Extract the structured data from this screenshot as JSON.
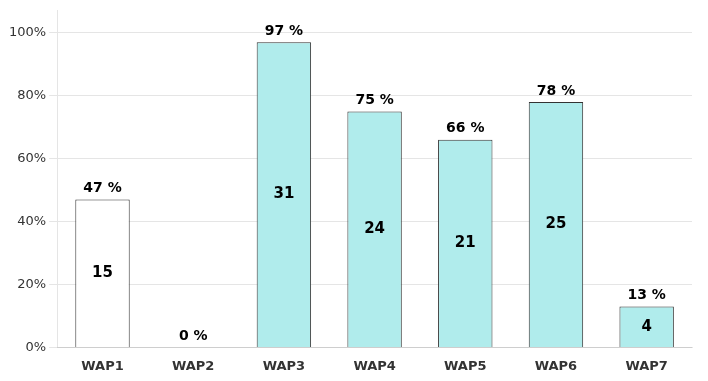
{
  "chart_data": {
    "type": "bar",
    "categories": [
      "WAP1",
      "WAP2",
      "WAP3",
      "WAP4",
      "WAP5",
      "WAP6",
      "WAP7"
    ],
    "values": [
      47,
      0,
      97,
      75,
      66,
      78,
      13
    ],
    "value_labels": [
      "47 %",
      "0 %",
      "97 %",
      "75 %",
      "66 %",
      "78 %",
      "13 %"
    ],
    "counts": [
      15,
      null,
      31,
      24,
      21,
      25,
      4
    ],
    "colors": [
      "#ffffff",
      "#ffffff",
      "#b0ecec",
      "#b0ecec",
      "#b0ecec",
      "#b0ecec",
      "#b0ecec"
    ],
    "ylim": [
      0,
      107
    ],
    "yticks": [
      {
        "value": 0,
        "label": "0%"
      },
      {
        "value": 20,
        "label": "20%"
      },
      {
        "value": 40,
        "label": "40%"
      },
      {
        "value": 60,
        "label": "60%"
      },
      {
        "value": 80,
        "label": "80%"
      },
      {
        "value": 100,
        "label": "100%"
      }
    ],
    "grid": true,
    "data_labels": true
  }
}
